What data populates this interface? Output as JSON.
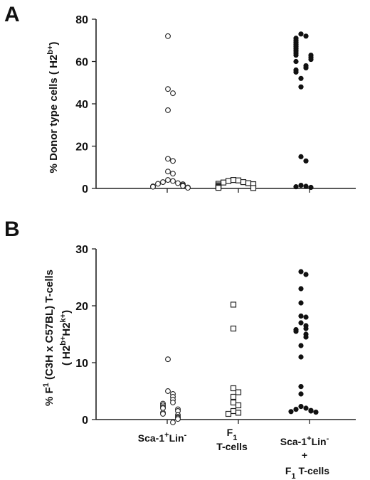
{
  "panels": {
    "a_letter": "A",
    "b_letter": "B"
  },
  "chart_data": [
    {
      "type": "scatter",
      "panel": "A",
      "ylabel": "% Donor type  cells ( H2b+)",
      "ylabel_parts": [
        "% Donor type  cells ( H2",
        "b+",
        ")"
      ],
      "ylim": [
        0,
        80
      ],
      "yticks": [
        0,
        20,
        40,
        60,
        80
      ],
      "categories": [
        "Sca-1+Lin-",
        "F1 T-cells",
        "Sca-1+Lin- + F1 T-cells"
      ],
      "series": [
        {
          "marker": "open-circle",
          "category": "Sca-1+Lin-",
          "values": [
            72,
            47,
            45,
            37,
            14,
            13,
            8,
            7,
            4,
            3.5,
            3,
            2.5,
            2.2,
            2,
            1.5,
            1.2,
            1,
            0.8,
            0.5,
            0.3
          ]
        },
        {
          "marker": "open-square",
          "category": "F1 T-cells",
          "values": [
            4,
            3.8,
            3.5,
            3,
            2.8,
            2.5,
            2.2,
            2,
            1.5,
            1,
            0.8,
            0.5,
            0.3,
            0.2
          ]
        },
        {
          "marker": "filled-circle",
          "category": "Sca-1+Lin- + F1 T-cells",
          "values": [
            73,
            72,
            71,
            70,
            69,
            68,
            67,
            66,
            65,
            64,
            63,
            63,
            62,
            61,
            60,
            58,
            57,
            56,
            55,
            52,
            48,
            15,
            13,
            1.5,
            1,
            0.8,
            0.5
          ]
        }
      ]
    },
    {
      "type": "scatter",
      "panel": "B",
      "ylabel_line1": "% F1 (C3H x C57BL) T-cells",
      "ylabel_line2": "( H2b+H2k+)",
      "ylabel_line1_parts": [
        "% F",
        "1",
        " (C3H x C57BL) T-cells"
      ],
      "ylabel_line2_parts": [
        "( H2",
        "b+",
        "H2",
        "k+",
        ")"
      ],
      "ylim": [
        0,
        30
      ],
      "yticks": [
        0,
        10,
        20,
        30
      ],
      "categories": [
        "Sca-1+Lin-",
        "F1 T-cells",
        "Sca-1+Lin- + F1 T-cells"
      ],
      "category_labels": [
        [
          "Sca-1+Lin-"
        ],
        [
          "F1",
          "T-cells"
        ],
        [
          "Sca-1+Lin-",
          "+",
          "F1 T-cells"
        ]
      ],
      "series": [
        {
          "marker": "open-circle",
          "category": "Sca-1+Lin-",
          "values": [
            10.6,
            5,
            4.5,
            4,
            3.5,
            3,
            2.8,
            2.5,
            2.2,
            2,
            1.8,
            1.5,
            1.2,
            1,
            0.8,
            0.5,
            0.3,
            0.1,
            -0.5
          ]
        },
        {
          "marker": "open-square",
          "category": "F1 T-cells",
          "values": [
            20.2,
            16,
            5.5,
            4.8,
            4,
            3,
            2.5,
            1.5,
            1.2,
            1
          ]
        },
        {
          "marker": "filled-circle",
          "category": "Sca-1+Lin- + F1 T-cells",
          "values": [
            26,
            25.5,
            23,
            20.5,
            18.2,
            18,
            17,
            16.5,
            16,
            15.8,
            15.5,
            15,
            14.5,
            13,
            11,
            5.8,
            4.5,
            2.3,
            2,
            1.8,
            1.6,
            1.5,
            1.4,
            1.3
          ]
        }
      ]
    }
  ]
}
